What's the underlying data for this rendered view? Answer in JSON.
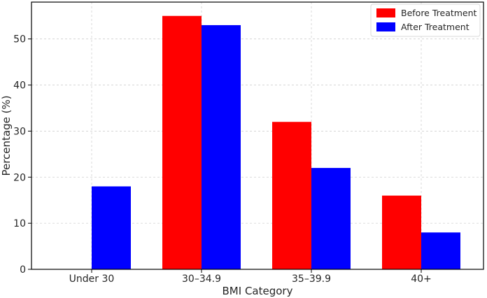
{
  "chart_data": {
    "type": "bar",
    "categories": [
      "Under 30",
      "30–34.9",
      "35–39.9",
      "40+"
    ],
    "series": [
      {
        "name": "Before Treatment",
        "values": [
          0,
          55,
          32,
          16
        ],
        "color": "#ff0000"
      },
      {
        "name": "After Treatment",
        "values": [
          18,
          53,
          22,
          8
        ],
        "color": "#0000ff"
      }
    ],
    "xlabel": "BMI Category",
    "ylabel": "Percentage (%)",
    "ylim": [
      0,
      58
    ],
    "yticks": [
      0,
      10,
      20,
      30,
      40,
      50
    ],
    "grid": true,
    "legend_position": "top-right"
  }
}
